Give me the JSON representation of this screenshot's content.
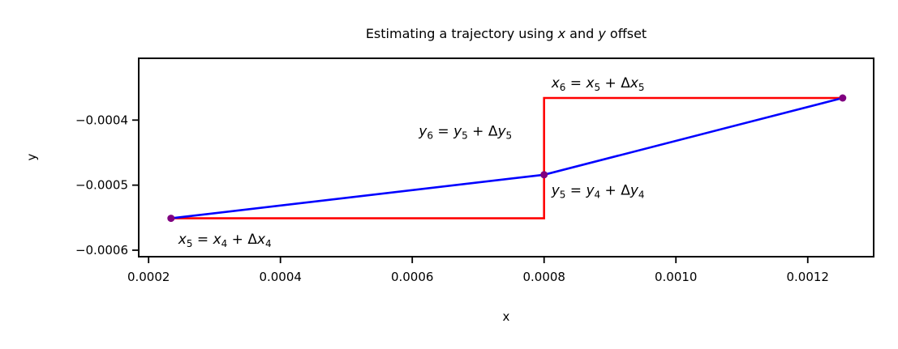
{
  "chart_data": {
    "type": "line",
    "title": {
      "prefix": "Estimating a trajectory using ",
      "var1": "x",
      "middle": " and ",
      "var2": "y",
      "suffix": " offset"
    },
    "xlabel": "x",
    "ylabel": "y",
    "xlim": [
      0.000185,
      0.0013
    ],
    "ylim": [
      -0.00061,
      -0.000305
    ],
    "xticks": [
      {
        "value": 0.0002,
        "label": "0.0002"
      },
      {
        "value": 0.0004,
        "label": "0.0004"
      },
      {
        "value": 0.0006,
        "label": "0.0006"
      },
      {
        "value": 0.0008,
        "label": "0.0008"
      },
      {
        "value": 0.001,
        "label": "0.0010"
      },
      {
        "value": 0.0012,
        "label": "0.0012"
      }
    ],
    "yticks": [
      {
        "value": -0.0004,
        "label": "−0.0004"
      },
      {
        "value": -0.0005,
        "label": "−0.0005"
      },
      {
        "value": -0.0006,
        "label": "−0.0006"
      }
    ],
    "series": [
      {
        "role": "trajectory",
        "color": "#0000ff",
        "x": [
          0.000234,
          0.0008,
          0.001253
        ],
        "y": [
          -0.000551,
          -0.000484,
          -0.000366
        ]
      },
      {
        "role": "offsets",
        "color": "#ff0000",
        "x": [
          0.000234,
          0.0008,
          0.0008,
          0.001253
        ],
        "y": [
          -0.000551,
          -0.000551,
          -0.000366,
          -0.000366
        ]
      }
    ],
    "points": {
      "color": "#800080",
      "x": [
        0.000234,
        0.0008,
        0.001253
      ],
      "y": [
        -0.000551,
        -0.000484,
        -0.000366
      ]
    },
    "annotations": [
      {
        "id": "x5",
        "x": 0.000245,
        "y": -0.00059,
        "lhs_var": "x",
        "lhs_sub": "5",
        "rhs_var": "x",
        "rhs_sub": "4",
        "delta_var": "x",
        "delta_sub": "4"
      },
      {
        "id": "y5",
        "x": 0.000811,
        "y": -0.000515,
        "lhs_var": "y",
        "lhs_sub": "5",
        "rhs_var": "y",
        "rhs_sub": "4",
        "delta_var": "y",
        "delta_sub": "4"
      },
      {
        "id": "y6",
        "x": 0.00061,
        "y": -0.000424,
        "lhs_var": "y",
        "lhs_sub": "6",
        "rhs_var": "y",
        "rhs_sub": "5",
        "delta_var": "y",
        "delta_sub": "5"
      },
      {
        "id": "x6",
        "x": 0.000811,
        "y": -0.00035,
        "lhs_var": "x",
        "lhs_sub": "6",
        "rhs_var": "x",
        "rhs_sub": "5",
        "delta_var": "x",
        "delta_sub": "5"
      }
    ],
    "symbols": {
      "equals": " = ",
      "plus": " + ",
      "delta": "Δ"
    },
    "grid": false,
    "legend": "none"
  }
}
